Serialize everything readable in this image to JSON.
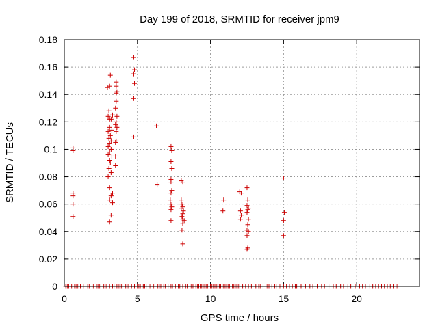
{
  "chart_data": {
    "type": "scatter",
    "title": "Day 199 of 2018, SRMTID for receiver jpm9",
    "xlabel": "GPS time / hours",
    "ylabel": "SRMTID / TECUs",
    "xlim": [
      0,
      24.3
    ],
    "ylim": [
      0,
      0.18
    ],
    "xticks": [
      0,
      5,
      10,
      15,
      20
    ],
    "xtick_labels": [
      "0",
      "5",
      "10",
      "15",
      "20"
    ],
    "yticks": [
      0,
      0.02,
      0.04,
      0.06,
      0.08,
      0.1,
      0.12,
      0.14,
      0.16,
      0.18
    ],
    "ytick_labels": [
      "0",
      "0.02",
      "0.04",
      "0.06",
      "0.08",
      "0.1",
      "0.12",
      "0.14",
      "0.16",
      "0.18"
    ],
    "grid": true,
    "marker": "+",
    "color": "#cc0000",
    "series": [
      {
        "name": "SRMTID",
        "points": [
          [
            0.6,
            0.101
          ],
          [
            0.6,
            0.099
          ],
          [
            0.6,
            0.068
          ],
          [
            0.6,
            0.066
          ],
          [
            0.6,
            0.06
          ],
          [
            0.6,
            0.051
          ],
          [
            2.95,
            0.145
          ],
          [
            3.05,
            0.128
          ],
          [
            3.0,
            0.124
          ],
          [
            3.1,
            0.122
          ],
          [
            3.2,
            0.122
          ],
          [
            3.1,
            0.116
          ],
          [
            3.0,
            0.113
          ],
          [
            3.15,
            0.11
          ],
          [
            3.05,
            0.108
          ],
          [
            3.2,
            0.106
          ],
          [
            3.1,
            0.104
          ],
          [
            3.0,
            0.102
          ],
          [
            3.2,
            0.1
          ],
          [
            3.1,
            0.098
          ],
          [
            3.0,
            0.096
          ],
          [
            3.25,
            0.095
          ],
          [
            3.1,
            0.092
          ],
          [
            3.15,
            0.09
          ],
          [
            3.05,
            0.086
          ],
          [
            3.2,
            0.083
          ],
          [
            3.0,
            0.08
          ],
          [
            3.1,
            0.072
          ],
          [
            3.3,
            0.068
          ],
          [
            3.2,
            0.066
          ],
          [
            3.1,
            0.063
          ],
          [
            3.3,
            0.061
          ],
          [
            3.2,
            0.052
          ],
          [
            3.1,
            0.047
          ],
          [
            3.15,
            0.154
          ],
          [
            3.1,
            0.146
          ],
          [
            3.3,
            0.125
          ],
          [
            3.25,
            0.114
          ],
          [
            3.55,
            0.149
          ],
          [
            3.55,
            0.146
          ],
          [
            3.6,
            0.142
          ],
          [
            3.55,
            0.141
          ],
          [
            3.55,
            0.135
          ],
          [
            3.5,
            0.13
          ],
          [
            3.6,
            0.124
          ],
          [
            3.55,
            0.12
          ],
          [
            3.5,
            0.118
          ],
          [
            3.6,
            0.116
          ],
          [
            3.55,
            0.113
          ],
          [
            3.55,
            0.106
          ],
          [
            3.5,
            0.105
          ],
          [
            3.5,
            0.095
          ],
          [
            3.5,
            0.088
          ],
          [
            4.75,
            0.167
          ],
          [
            4.8,
            0.158
          ],
          [
            4.75,
            0.155
          ],
          [
            4.8,
            0.148
          ],
          [
            4.75,
            0.137
          ],
          [
            4.75,
            0.109
          ],
          [
            6.3,
            0.117
          ],
          [
            6.35,
            0.074
          ],
          [
            7.3,
            0.102
          ],
          [
            7.35,
            0.099
          ],
          [
            7.3,
            0.091
          ],
          [
            7.35,
            0.086
          ],
          [
            7.3,
            0.078
          ],
          [
            7.3,
            0.076
          ],
          [
            7.35,
            0.07
          ],
          [
            7.3,
            0.068
          ],
          [
            7.25,
            0.063
          ],
          [
            7.3,
            0.06
          ],
          [
            7.35,
            0.058
          ],
          [
            7.3,
            0.056
          ],
          [
            7.3,
            0.048
          ],
          [
            8.0,
            0.077
          ],
          [
            8.1,
            0.076
          ],
          [
            8.0,
            0.063
          ],
          [
            8.05,
            0.06
          ],
          [
            8.1,
            0.058
          ],
          [
            8.0,
            0.057
          ],
          [
            8.15,
            0.055
          ],
          [
            8.1,
            0.053
          ],
          [
            8.05,
            0.051
          ],
          [
            8.1,
            0.049
          ],
          [
            8.2,
            0.048
          ],
          [
            8.1,
            0.046
          ],
          [
            8.05,
            0.041
          ],
          [
            8.1,
            0.031
          ],
          [
            10.9,
            0.063
          ],
          [
            10.85,
            0.055
          ],
          [
            12.0,
            0.069
          ],
          [
            12.1,
            0.068
          ],
          [
            12.05,
            0.055
          ],
          [
            12.1,
            0.052
          ],
          [
            12.05,
            0.049
          ],
          [
            12.5,
            0.072
          ],
          [
            12.55,
            0.063
          ],
          [
            12.5,
            0.059
          ],
          [
            12.6,
            0.057
          ],
          [
            12.55,
            0.056
          ],
          [
            12.5,
            0.054
          ],
          [
            12.6,
            0.049
          ],
          [
            12.55,
            0.045
          ],
          [
            12.5,
            0.041
          ],
          [
            12.6,
            0.04
          ],
          [
            12.5,
            0.037
          ],
          [
            12.55,
            0.028
          ],
          [
            12.5,
            0.027
          ],
          [
            15.0,
            0.079
          ],
          [
            15.05,
            0.054
          ],
          [
            15.0,
            0.048
          ],
          [
            15.0,
            0.037
          ]
        ],
        "baseline_x": [
          0.1,
          0.2,
          0.3,
          0.5,
          0.7,
          0.8,
          0.9,
          1.0,
          1.1,
          1.3,
          1.6,
          1.7,
          1.9,
          2.0,
          2.2,
          2.3,
          2.4,
          2.5,
          2.7,
          2.8,
          2.9,
          3.1,
          3.3,
          3.4,
          3.6,
          3.7,
          3.8,
          3.9,
          4.0,
          4.2,
          4.3,
          4.4,
          4.6,
          4.8,
          5.0,
          5.1,
          5.2,
          5.4,
          5.5,
          5.6,
          5.8,
          5.9,
          6.1,
          6.2,
          6.4,
          6.5,
          6.6,
          6.8,
          6.9,
          7.1,
          7.3,
          7.4,
          7.6,
          7.8,
          7.9,
          8.1,
          8.3,
          8.4,
          8.6,
          8.7,
          8.8,
          9.0,
          9.1,
          9.2,
          9.3,
          9.4,
          9.5,
          9.6,
          9.7,
          9.8,
          9.9,
          10.0,
          10.1,
          10.2,
          10.3,
          10.4,
          10.5,
          10.6,
          10.7,
          10.8,
          10.9,
          11.0,
          11.1,
          11.2,
          11.3,
          11.4,
          11.5,
          11.6,
          11.7,
          11.8,
          11.9,
          12.0,
          12.2,
          12.4,
          12.6,
          12.8,
          12.9,
          13.1,
          13.3,
          13.4,
          13.6,
          13.8,
          13.9,
          14.0,
          14.2,
          14.4,
          14.5,
          14.7,
          14.8,
          15.0,
          15.2,
          15.4,
          15.6,
          15.8,
          15.9,
          16.2,
          16.5,
          16.8,
          17.0,
          17.3,
          17.6,
          17.8,
          18.1,
          18.4,
          18.6,
          18.9,
          19.1,
          19.4,
          19.6,
          19.9,
          20.2,
          20.4,
          20.6,
          20.9,
          21.1,
          21.3,
          21.5,
          21.7,
          21.9,
          22.1,
          22.3,
          22.5,
          22.7,
          22.8
        ]
      }
    ]
  }
}
